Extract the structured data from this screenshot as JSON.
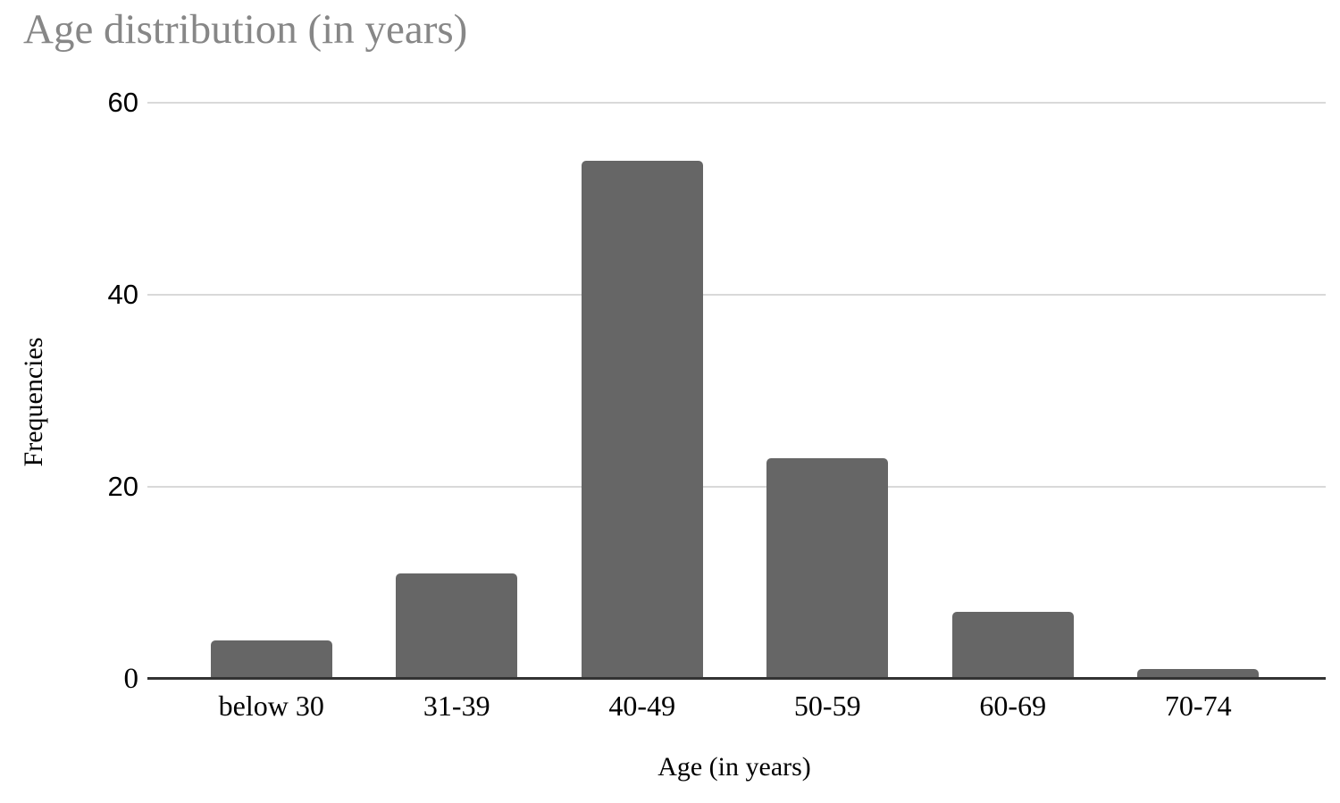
{
  "page": {
    "background": "#ffffff"
  },
  "chart_data": {
    "type": "bar",
    "title": "Age distribution (in years)",
    "categories": [
      "below 30",
      "31-39",
      "40-49",
      "50-59",
      "60-69",
      "70-74"
    ],
    "values": [
      4,
      11,
      54,
      23,
      7,
      1
    ],
    "xlabel": "Age (in years)",
    "ylabel": "Frequencies",
    "ylim": [
      0,
      60
    ],
    "yticks": [
      0,
      20,
      40,
      60
    ],
    "grid": true,
    "legend": "none",
    "colors": {
      "bar": "#666666",
      "gridline": "#d9d9d9",
      "axis_line": "#333333",
      "title": "#878787",
      "text": "#000000"
    }
  }
}
